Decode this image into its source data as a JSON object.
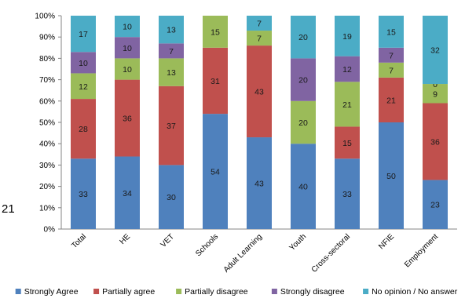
{
  "stray_label": "21",
  "chart_data": {
    "type": "bar",
    "stacked": true,
    "percent": true,
    "categories": [
      "Total",
      "HE",
      "VET",
      "Schools",
      "Adult Learning",
      "Youth",
      "Cross-sectoral",
      "NFIE",
      "Employment"
    ],
    "series": [
      {
        "name": "Strongly Agree",
        "color": "#4F81BD",
        "values": [
          33,
          34,
          30,
          54,
          43,
          40,
          33,
          50,
          23
        ]
      },
      {
        "name": "Partially agree",
        "color": "#C0504D",
        "values": [
          28,
          36,
          37,
          31,
          43,
          0,
          15,
          21,
          36
        ]
      },
      {
        "name": "Partially disagree",
        "color": "#9BBB59",
        "values": [
          12,
          10,
          13,
          15,
          7,
          20,
          21,
          7,
          9
        ]
      },
      {
        "name": "Strongly disagree",
        "color": "#8064A2",
        "values": [
          10,
          10,
          7,
          0,
          0,
          20,
          12,
          7,
          0
        ]
      },
      {
        "name": "No opinion / No answer",
        "color": "#4BACC6",
        "values": [
          17,
          10,
          13,
          0,
          7,
          20,
          19,
          15,
          32
        ]
      }
    ],
    "segment_labels": [
      [
        "33",
        "28",
        "12",
        "10",
        "17"
      ],
      [
        "34",
        "36",
        "10",
        "10",
        "10"
      ],
      [
        "30",
        "37",
        "13",
        "7",
        "13"
      ],
      [
        "54",
        "31",
        "15",
        "",
        ""
      ],
      [
        "43",
        "43",
        "7",
        "",
        "7"
      ],
      [
        "40",
        "",
        "20",
        "20",
        "20"
      ],
      [
        "33",
        "15",
        "21",
        "12",
        "19"
      ],
      [
        "50",
        "21",
        "7",
        "7",
        "15"
      ],
      [
        "23",
        "36",
        "9",
        "0",
        "32"
      ]
    ],
    "y_ticks": [
      "0%",
      "10%",
      "20%",
      "30%",
      "40%",
      "50%",
      "60%",
      "70%",
      "80%",
      "90%",
      "100%"
    ],
    "ylim": [
      0,
      100
    ],
    "grid": false,
    "legend_position": "bottom"
  }
}
